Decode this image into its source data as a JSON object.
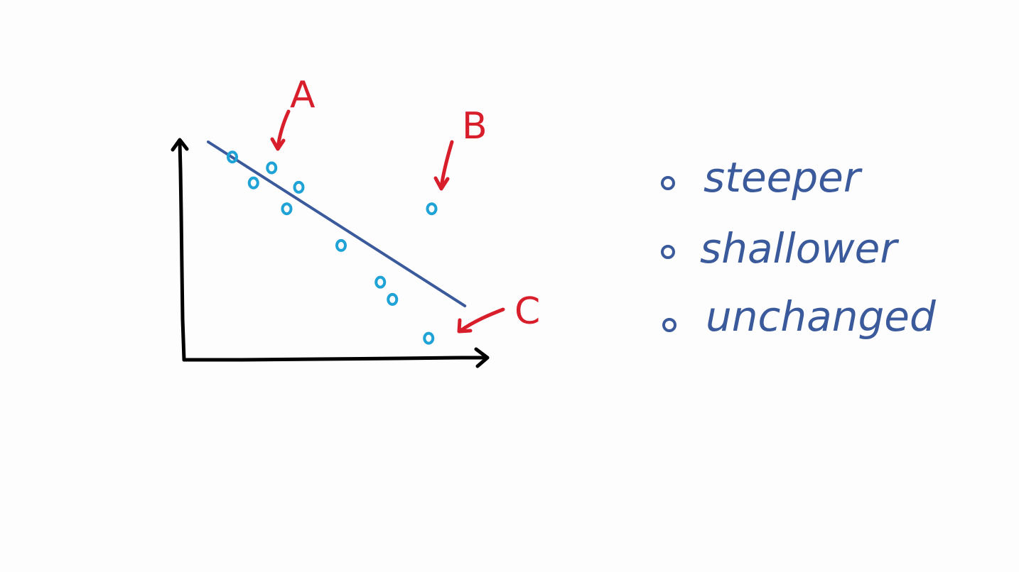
{
  "colors": {
    "background": "#fdfdfd",
    "axes": "#000000",
    "fit_line": "#3a5a9c",
    "points": "#1fa3d6",
    "annotations": "#d81e2a",
    "options_text": "#3a5a9c"
  },
  "annotations": {
    "a": "A",
    "b": "B",
    "c": "C"
  },
  "options": [
    {
      "label": "steeper"
    },
    {
      "label": "shallower"
    },
    {
      "label": "unchanged"
    }
  ],
  "chart_data": {
    "type": "scatter",
    "title": "",
    "xlabel": "",
    "ylabel": "",
    "xlim": [
      0,
      10
    ],
    "ylim": [
      0,
      10
    ],
    "grid": false,
    "legend": "none",
    "points": [
      {
        "x": 1.6,
        "y": 9.3
      },
      {
        "x": 2.3,
        "y": 8.1
      },
      {
        "x": 2.9,
        "y": 8.8,
        "tag": "A"
      },
      {
        "x": 3.8,
        "y": 7.9
      },
      {
        "x": 3.4,
        "y": 6.9
      },
      {
        "x": 5.2,
        "y": 5.2
      },
      {
        "x": 6.5,
        "y": 3.5
      },
      {
        "x": 6.9,
        "y": 2.7
      },
      {
        "x": 8.2,
        "y": 6.9,
        "tag": "B"
      },
      {
        "x": 8.1,
        "y": 0.9,
        "tag": "C"
      }
    ],
    "fit_line": {
      "x": [
        0.8,
        9.3
      ],
      "y": [
        10,
        2.4
      ]
    }
  }
}
